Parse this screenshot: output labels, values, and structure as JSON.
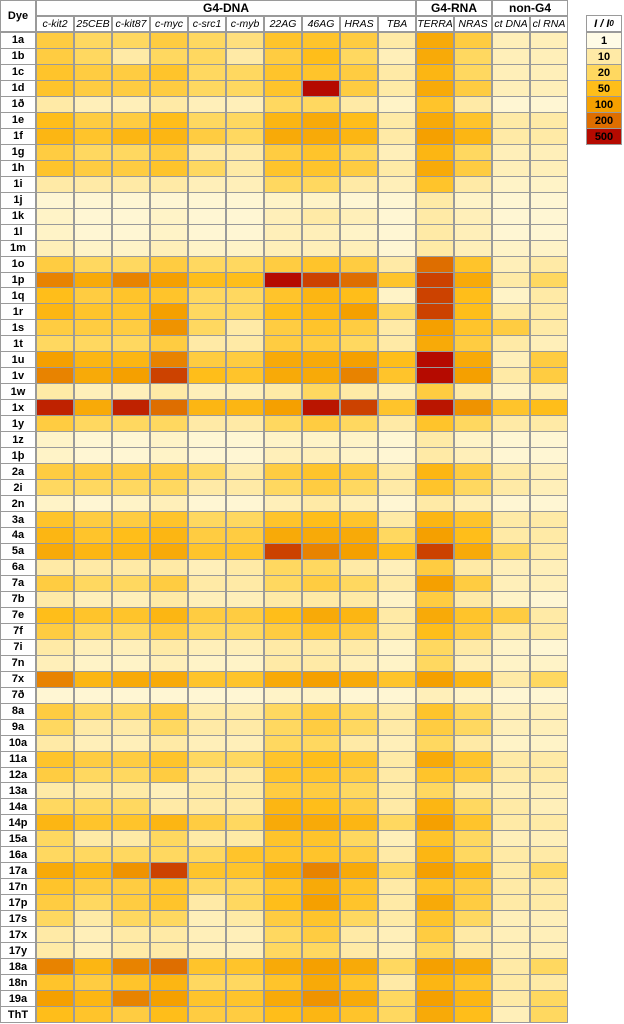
{
  "table": {
    "row_header": "Dye",
    "groups": [
      {
        "label": "G4-DNA",
        "columns": [
          "c-kit2",
          "25CEB",
          "c-kit87",
          "c-myc",
          "c-src1",
          "c-myb",
          "22AG",
          "46AG",
          "HRAS",
          "TBA"
        ]
      },
      {
        "label": "G4-RNA",
        "columns": [
          "TERRA",
          "NRAS"
        ]
      },
      {
        "label": "non-G4",
        "columns": [
          "ct DNA",
          "cl RNA"
        ]
      }
    ],
    "rows": [
      {
        "dye": "1a",
        "values": [
          30,
          20,
          20,
          30,
          20,
          15,
          40,
          40,
          30,
          10,
          80,
          30,
          5,
          5
        ]
      },
      {
        "dye": "1b",
        "values": [
          30,
          20,
          10,
          20,
          20,
          10,
          30,
          50,
          20,
          5,
          80,
          20,
          5,
          5
        ]
      },
      {
        "dye": "1c",
        "values": [
          40,
          30,
          30,
          40,
          20,
          20,
          40,
          40,
          30,
          10,
          60,
          20,
          5,
          5
        ]
      },
      {
        "dye": "1d",
        "values": [
          40,
          30,
          30,
          30,
          20,
          20,
          40,
          500,
          30,
          10,
          80,
          30,
          5,
          5
        ]
      },
      {
        "dye": "1ð",
        "values": [
          10,
          5,
          5,
          10,
          5,
          5,
          20,
          20,
          10,
          3,
          40,
          10,
          2,
          2
        ]
      },
      {
        "dye": "1e",
        "values": [
          50,
          30,
          30,
          50,
          20,
          20,
          60,
          80,
          50,
          10,
          80,
          40,
          10,
          10
        ]
      },
      {
        "dye": "1f",
        "values": [
          60,
          40,
          60,
          60,
          30,
          20,
          80,
          80,
          60,
          10,
          100,
          60,
          10,
          10
        ]
      },
      {
        "dye": "1g",
        "values": [
          30,
          20,
          20,
          30,
          10,
          10,
          30,
          40,
          20,
          5,
          60,
          20,
          5,
          5
        ]
      },
      {
        "dye": "1h",
        "values": [
          40,
          30,
          30,
          40,
          20,
          10,
          40,
          40,
          30,
          10,
          80,
          30,
          5,
          5
        ]
      },
      {
        "dye": "1i",
        "values": [
          10,
          10,
          10,
          10,
          5,
          5,
          20,
          20,
          10,
          5,
          40,
          10,
          3,
          3
        ]
      },
      {
        "dye": "1j",
        "values": [
          2,
          2,
          2,
          2,
          2,
          2,
          3,
          3,
          2,
          2,
          10,
          3,
          2,
          2
        ]
      },
      {
        "dye": "1k",
        "values": [
          3,
          2,
          2,
          3,
          2,
          2,
          5,
          10,
          5,
          2,
          10,
          5,
          2,
          2
        ]
      },
      {
        "dye": "1l",
        "values": [
          3,
          2,
          2,
          3,
          2,
          2,
          5,
          5,
          3,
          2,
          10,
          5,
          2,
          2
        ]
      },
      {
        "dye": "1m",
        "values": [
          5,
          3,
          3,
          5,
          3,
          3,
          5,
          5,
          5,
          2,
          10,
          5,
          3,
          3
        ]
      },
      {
        "dye": "1o",
        "values": [
          30,
          20,
          20,
          30,
          20,
          20,
          30,
          40,
          30,
          10,
          200,
          40,
          5,
          10
        ]
      },
      {
        "dye": "1p",
        "values": [
          150,
          80,
          150,
          100,
          50,
          50,
          500,
          300,
          200,
          40,
          300,
          80,
          10,
          20
        ]
      },
      {
        "dye": "1q",
        "values": [
          50,
          30,
          40,
          40,
          20,
          20,
          40,
          60,
          50,
          3,
          300,
          50,
          3,
          10
        ]
      },
      {
        "dye": "1r",
        "values": [
          60,
          40,
          40,
          100,
          20,
          20,
          50,
          60,
          100,
          20,
          300,
          50,
          10,
          10
        ]
      },
      {
        "dye": "1s",
        "values": [
          30,
          30,
          30,
          120,
          20,
          10,
          30,
          40,
          30,
          10,
          100,
          40,
          30,
          10
        ]
      },
      {
        "dye": "1t",
        "values": [
          20,
          20,
          20,
          30,
          10,
          10,
          30,
          30,
          20,
          10,
          80,
          30,
          10,
          5
        ]
      },
      {
        "dye": "1u",
        "values": [
          100,
          60,
          60,
          150,
          30,
          30,
          80,
          80,
          100,
          50,
          500,
          80,
          5,
          30
        ]
      },
      {
        "dye": "1v",
        "values": [
          150,
          80,
          100,
          300,
          50,
          40,
          80,
          80,
          150,
          40,
          500,
          100,
          10,
          30
        ]
      },
      {
        "dye": "1w",
        "values": [
          10,
          5,
          5,
          10,
          5,
          5,
          10,
          20,
          10,
          5,
          30,
          10,
          3,
          5
        ]
      },
      {
        "dye": "1x",
        "values": [
          400,
          80,
          400,
          200,
          60,
          60,
          100,
          450,
          300,
          40,
          450,
          120,
          40,
          50
        ]
      },
      {
        "dye": "1y",
        "values": [
          30,
          20,
          20,
          20,
          10,
          10,
          20,
          30,
          20,
          10,
          40,
          20,
          10,
          10
        ]
      },
      {
        "dye": "1z",
        "values": [
          3,
          2,
          2,
          3,
          2,
          2,
          3,
          3,
          3,
          2,
          10,
          3,
          2,
          2
        ]
      },
      {
        "dye": "1þ",
        "values": [
          3,
          2,
          2,
          3,
          2,
          2,
          5,
          5,
          3,
          2,
          10,
          5,
          2,
          2
        ]
      },
      {
        "dye": "2a",
        "values": [
          30,
          30,
          30,
          30,
          20,
          10,
          30,
          40,
          30,
          10,
          60,
          30,
          10,
          5
        ]
      },
      {
        "dye": "2i",
        "values": [
          20,
          20,
          20,
          20,
          10,
          10,
          20,
          30,
          20,
          10,
          40,
          20,
          10,
          5
        ]
      },
      {
        "dye": "2n",
        "values": [
          3,
          2,
          3,
          5,
          2,
          2,
          5,
          10,
          5,
          2,
          10,
          5,
          2,
          2
        ]
      },
      {
        "dye": "3a",
        "values": [
          40,
          30,
          30,
          40,
          20,
          20,
          40,
          50,
          40,
          10,
          60,
          40,
          10,
          10
        ]
      },
      {
        "dye": "4a",
        "values": [
          60,
          40,
          50,
          60,
          30,
          30,
          80,
          80,
          80,
          20,
          100,
          50,
          10,
          10
        ]
      },
      {
        "dye": "5a",
        "values": [
          80,
          60,
          60,
          80,
          40,
          40,
          300,
          150,
          100,
          50,
          300,
          80,
          20,
          10
        ]
      },
      {
        "dye": "6a",
        "values": [
          10,
          10,
          10,
          10,
          5,
          10,
          20,
          20,
          10,
          5,
          30,
          10,
          5,
          5
        ]
      },
      {
        "dye": "7a",
        "values": [
          30,
          20,
          20,
          30,
          10,
          10,
          20,
          30,
          20,
          10,
          100,
          30,
          5,
          5
        ]
      },
      {
        "dye": "7b",
        "values": [
          10,
          5,
          5,
          10,
          5,
          5,
          10,
          10,
          10,
          3,
          30,
          10,
          3,
          2
        ]
      },
      {
        "dye": "7e",
        "values": [
          50,
          40,
          40,
          60,
          30,
          30,
          50,
          80,
          60,
          10,
          80,
          40,
          30,
          10
        ]
      },
      {
        "dye": "7f",
        "values": [
          30,
          20,
          20,
          30,
          20,
          20,
          30,
          40,
          30,
          10,
          50,
          30,
          10,
          10
        ]
      },
      {
        "dye": "7i",
        "values": [
          10,
          5,
          5,
          10,
          5,
          5,
          10,
          10,
          10,
          3,
          20,
          10,
          3,
          2
        ]
      },
      {
        "dye": "7n",
        "values": [
          5,
          3,
          3,
          5,
          3,
          3,
          10,
          10,
          5,
          3,
          20,
          5,
          3,
          3
        ]
      },
      {
        "dye": "7x",
        "values": [
          150,
          60,
          80,
          80,
          40,
          40,
          80,
          100,
          80,
          40,
          100,
          60,
          10,
          20
        ]
      },
      {
        "dye": "7ð",
        "values": [
          2,
          2,
          2,
          2,
          2,
          2,
          3,
          3,
          2,
          2,
          5,
          3,
          2,
          2
        ]
      },
      {
        "dye": "8a",
        "values": [
          30,
          20,
          20,
          30,
          10,
          10,
          20,
          30,
          20,
          10,
          40,
          20,
          5,
          5
        ]
      },
      {
        "dye": "9a",
        "values": [
          20,
          10,
          10,
          20,
          10,
          10,
          20,
          30,
          20,
          10,
          30,
          20,
          5,
          5
        ]
      },
      {
        "dye": "10a",
        "values": [
          10,
          5,
          5,
          10,
          5,
          5,
          20,
          20,
          10,
          5,
          20,
          10,
          3,
          3
        ]
      },
      {
        "dye": "11a",
        "values": [
          40,
          30,
          30,
          40,
          20,
          20,
          40,
          50,
          40,
          10,
          80,
          40,
          10,
          10
        ]
      },
      {
        "dye": "12a",
        "values": [
          30,
          20,
          20,
          30,
          10,
          10,
          40,
          40,
          30,
          10,
          40,
          30,
          10,
          10
        ]
      },
      {
        "dye": "13a",
        "values": [
          10,
          10,
          10,
          5,
          10,
          10,
          30,
          30,
          20,
          10,
          20,
          10,
          5,
          5
        ]
      },
      {
        "dye": "14a",
        "values": [
          20,
          20,
          20,
          10,
          10,
          10,
          60,
          50,
          30,
          10,
          60,
          20,
          10,
          5
        ]
      },
      {
        "dye": "14p",
        "values": [
          60,
          40,
          40,
          60,
          30,
          20,
          80,
          80,
          60,
          20,
          100,
          40,
          10,
          10
        ]
      },
      {
        "dye": "15a",
        "values": [
          20,
          10,
          10,
          20,
          10,
          10,
          40,
          40,
          20,
          5,
          40,
          20,
          5,
          5
        ]
      },
      {
        "dye": "16a",
        "values": [
          20,
          20,
          20,
          20,
          20,
          40,
          40,
          40,
          30,
          10,
          60,
          20,
          10,
          10
        ]
      },
      {
        "dye": "17a",
        "values": [
          80,
          60,
          120,
          300,
          40,
          40,
          80,
          150,
          80,
          20,
          100,
          60,
          10,
          20
        ]
      },
      {
        "dye": "17n",
        "values": [
          40,
          30,
          30,
          40,
          20,
          20,
          40,
          80,
          40,
          10,
          40,
          30,
          10,
          10
        ]
      },
      {
        "dye": "17p",
        "values": [
          30,
          20,
          30,
          40,
          10,
          20,
          50,
          100,
          40,
          10,
          80,
          30,
          10,
          10
        ]
      },
      {
        "dye": "17s",
        "values": [
          20,
          10,
          20,
          20,
          5,
          10,
          30,
          40,
          20,
          10,
          40,
          20,
          5,
          5
        ]
      },
      {
        "dye": "17x",
        "values": [
          10,
          5,
          10,
          10,
          5,
          5,
          20,
          30,
          10,
          5,
          30,
          10,
          5,
          5
        ]
      },
      {
        "dye": "17y",
        "values": [
          10,
          5,
          10,
          10,
          5,
          5,
          20,
          20,
          10,
          5,
          20,
          10,
          5,
          5
        ]
      },
      {
        "dye": "18a",
        "values": [
          150,
          60,
          150,
          200,
          40,
          40,
          80,
          100,
          80,
          20,
          100,
          80,
          10,
          20
        ]
      },
      {
        "dye": "18n",
        "values": [
          40,
          30,
          40,
          60,
          20,
          20,
          40,
          80,
          40,
          10,
          60,
          40,
          10,
          10
        ]
      },
      {
        "dye": "19a",
        "values": [
          100,
          60,
          150,
          100,
          40,
          40,
          80,
          120,
          80,
          20,
          100,
          60,
          10,
          20
        ]
      },
      {
        "dye": "ThT",
        "values": [
          50,
          40,
          30,
          50,
          30,
          30,
          50,
          60,
          40,
          20,
          80,
          50,
          5,
          20
        ]
      }
    ]
  },
  "legend": {
    "title": "I / I",
    "title_sub": "0",
    "levels": [
      {
        "value": 1,
        "color": "#fffbe6"
      },
      {
        "value": 10,
        "color": "#ffeaa6"
      },
      {
        "value": 20,
        "color": "#ffd860"
      },
      {
        "value": 50,
        "color": "#ffbe1a"
      },
      {
        "value": 100,
        "color": "#f5a000"
      },
      {
        "value": 200,
        "color": "#de6e00"
      },
      {
        "value": 500,
        "color": "#b50a00"
      }
    ]
  }
}
